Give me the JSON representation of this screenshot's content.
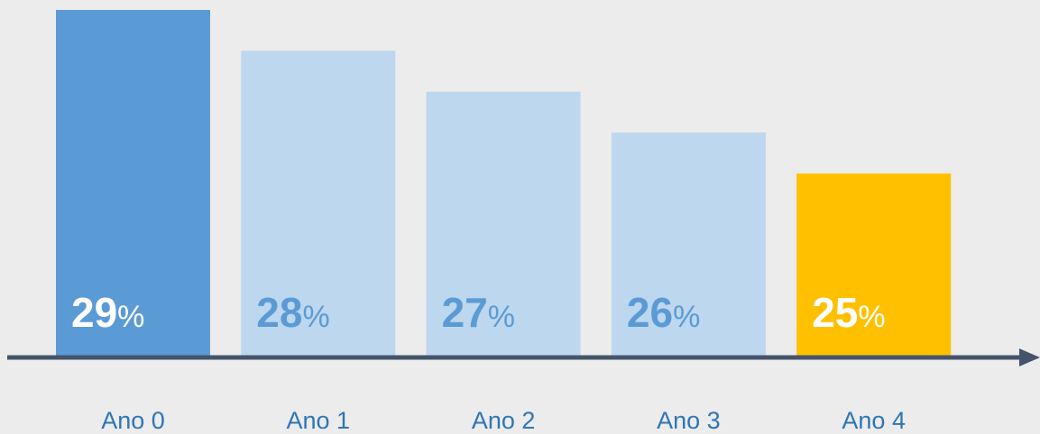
{
  "chart_data": {
    "type": "bar",
    "categories": [
      "Ano 0",
      "Ano 1",
      "Ano 2",
      "Ano 3",
      "Ano 4"
    ],
    "values": [
      29,
      28,
      27,
      26,
      25
    ],
    "value_labels": [
      "29%",
      "28%",
      "27%",
      "26%",
      "25%"
    ],
    "colors": [
      "#5b9bd5",
      "#bdd7ee",
      "#bdd7ee",
      "#bdd7ee",
      "#ffc000"
    ],
    "label_colors": [
      "#ffffff",
      "#5b9bd5",
      "#5b9bd5",
      "#5b9bd5",
      "#ffffff"
    ],
    "ylim": [
      20.5,
      29
    ]
  }
}
